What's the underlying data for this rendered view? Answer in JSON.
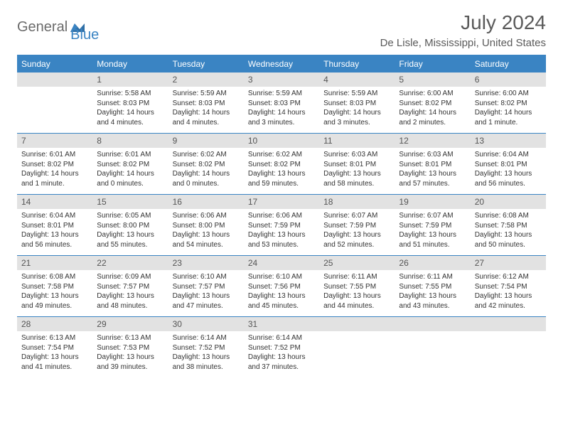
{
  "logo": {
    "part1": "General",
    "part2": "Blue"
  },
  "title": "July 2024",
  "location": "De Lisle, Mississippi, United States",
  "weekdays": [
    "Sunday",
    "Monday",
    "Tuesday",
    "Wednesday",
    "Thursday",
    "Friday",
    "Saturday"
  ],
  "colors": {
    "accent": "#3a84c3",
    "daynum_bg": "#e2e2e2",
    "text": "#333333",
    "header_text": "#5a5a5a"
  },
  "weeks": [
    [
      {
        "n": "",
        "sunrise": "",
        "sunset": "",
        "day1": "",
        "day2": ""
      },
      {
        "n": "1",
        "sunrise": "Sunrise: 5:58 AM",
        "sunset": "Sunset: 8:03 PM",
        "day1": "Daylight: 14 hours",
        "day2": "and 4 minutes."
      },
      {
        "n": "2",
        "sunrise": "Sunrise: 5:59 AM",
        "sunset": "Sunset: 8:03 PM",
        "day1": "Daylight: 14 hours",
        "day2": "and 4 minutes."
      },
      {
        "n": "3",
        "sunrise": "Sunrise: 5:59 AM",
        "sunset": "Sunset: 8:03 PM",
        "day1": "Daylight: 14 hours",
        "day2": "and 3 minutes."
      },
      {
        "n": "4",
        "sunrise": "Sunrise: 5:59 AM",
        "sunset": "Sunset: 8:03 PM",
        "day1": "Daylight: 14 hours",
        "day2": "and 3 minutes."
      },
      {
        "n": "5",
        "sunrise": "Sunrise: 6:00 AM",
        "sunset": "Sunset: 8:02 PM",
        "day1": "Daylight: 14 hours",
        "day2": "and 2 minutes."
      },
      {
        "n": "6",
        "sunrise": "Sunrise: 6:00 AM",
        "sunset": "Sunset: 8:02 PM",
        "day1": "Daylight: 14 hours",
        "day2": "and 1 minute."
      }
    ],
    [
      {
        "n": "7",
        "sunrise": "Sunrise: 6:01 AM",
        "sunset": "Sunset: 8:02 PM",
        "day1": "Daylight: 14 hours",
        "day2": "and 1 minute."
      },
      {
        "n": "8",
        "sunrise": "Sunrise: 6:01 AM",
        "sunset": "Sunset: 8:02 PM",
        "day1": "Daylight: 14 hours",
        "day2": "and 0 minutes."
      },
      {
        "n": "9",
        "sunrise": "Sunrise: 6:02 AM",
        "sunset": "Sunset: 8:02 PM",
        "day1": "Daylight: 14 hours",
        "day2": "and 0 minutes."
      },
      {
        "n": "10",
        "sunrise": "Sunrise: 6:02 AM",
        "sunset": "Sunset: 8:02 PM",
        "day1": "Daylight: 13 hours",
        "day2": "and 59 minutes."
      },
      {
        "n": "11",
        "sunrise": "Sunrise: 6:03 AM",
        "sunset": "Sunset: 8:01 PM",
        "day1": "Daylight: 13 hours",
        "day2": "and 58 minutes."
      },
      {
        "n": "12",
        "sunrise": "Sunrise: 6:03 AM",
        "sunset": "Sunset: 8:01 PM",
        "day1": "Daylight: 13 hours",
        "day2": "and 57 minutes."
      },
      {
        "n": "13",
        "sunrise": "Sunrise: 6:04 AM",
        "sunset": "Sunset: 8:01 PM",
        "day1": "Daylight: 13 hours",
        "day2": "and 56 minutes."
      }
    ],
    [
      {
        "n": "14",
        "sunrise": "Sunrise: 6:04 AM",
        "sunset": "Sunset: 8:01 PM",
        "day1": "Daylight: 13 hours",
        "day2": "and 56 minutes."
      },
      {
        "n": "15",
        "sunrise": "Sunrise: 6:05 AM",
        "sunset": "Sunset: 8:00 PM",
        "day1": "Daylight: 13 hours",
        "day2": "and 55 minutes."
      },
      {
        "n": "16",
        "sunrise": "Sunrise: 6:06 AM",
        "sunset": "Sunset: 8:00 PM",
        "day1": "Daylight: 13 hours",
        "day2": "and 54 minutes."
      },
      {
        "n": "17",
        "sunrise": "Sunrise: 6:06 AM",
        "sunset": "Sunset: 7:59 PM",
        "day1": "Daylight: 13 hours",
        "day2": "and 53 minutes."
      },
      {
        "n": "18",
        "sunrise": "Sunrise: 6:07 AM",
        "sunset": "Sunset: 7:59 PM",
        "day1": "Daylight: 13 hours",
        "day2": "and 52 minutes."
      },
      {
        "n": "19",
        "sunrise": "Sunrise: 6:07 AM",
        "sunset": "Sunset: 7:59 PM",
        "day1": "Daylight: 13 hours",
        "day2": "and 51 minutes."
      },
      {
        "n": "20",
        "sunrise": "Sunrise: 6:08 AM",
        "sunset": "Sunset: 7:58 PM",
        "day1": "Daylight: 13 hours",
        "day2": "and 50 minutes."
      }
    ],
    [
      {
        "n": "21",
        "sunrise": "Sunrise: 6:08 AM",
        "sunset": "Sunset: 7:58 PM",
        "day1": "Daylight: 13 hours",
        "day2": "and 49 minutes."
      },
      {
        "n": "22",
        "sunrise": "Sunrise: 6:09 AM",
        "sunset": "Sunset: 7:57 PM",
        "day1": "Daylight: 13 hours",
        "day2": "and 48 minutes."
      },
      {
        "n": "23",
        "sunrise": "Sunrise: 6:10 AM",
        "sunset": "Sunset: 7:57 PM",
        "day1": "Daylight: 13 hours",
        "day2": "and 47 minutes."
      },
      {
        "n": "24",
        "sunrise": "Sunrise: 6:10 AM",
        "sunset": "Sunset: 7:56 PM",
        "day1": "Daylight: 13 hours",
        "day2": "and 45 minutes."
      },
      {
        "n": "25",
        "sunrise": "Sunrise: 6:11 AM",
        "sunset": "Sunset: 7:55 PM",
        "day1": "Daylight: 13 hours",
        "day2": "and 44 minutes."
      },
      {
        "n": "26",
        "sunrise": "Sunrise: 6:11 AM",
        "sunset": "Sunset: 7:55 PM",
        "day1": "Daylight: 13 hours",
        "day2": "and 43 minutes."
      },
      {
        "n": "27",
        "sunrise": "Sunrise: 6:12 AM",
        "sunset": "Sunset: 7:54 PM",
        "day1": "Daylight: 13 hours",
        "day2": "and 42 minutes."
      }
    ],
    [
      {
        "n": "28",
        "sunrise": "Sunrise: 6:13 AM",
        "sunset": "Sunset: 7:54 PM",
        "day1": "Daylight: 13 hours",
        "day2": "and 41 minutes."
      },
      {
        "n": "29",
        "sunrise": "Sunrise: 6:13 AM",
        "sunset": "Sunset: 7:53 PM",
        "day1": "Daylight: 13 hours",
        "day2": "and 39 minutes."
      },
      {
        "n": "30",
        "sunrise": "Sunrise: 6:14 AM",
        "sunset": "Sunset: 7:52 PM",
        "day1": "Daylight: 13 hours",
        "day2": "and 38 minutes."
      },
      {
        "n": "31",
        "sunrise": "Sunrise: 6:14 AM",
        "sunset": "Sunset: 7:52 PM",
        "day1": "Daylight: 13 hours",
        "day2": "and 37 minutes."
      },
      {
        "n": "",
        "sunrise": "",
        "sunset": "",
        "day1": "",
        "day2": ""
      },
      {
        "n": "",
        "sunrise": "",
        "sunset": "",
        "day1": "",
        "day2": ""
      },
      {
        "n": "",
        "sunrise": "",
        "sunset": "",
        "day1": "",
        "day2": ""
      }
    ]
  ]
}
